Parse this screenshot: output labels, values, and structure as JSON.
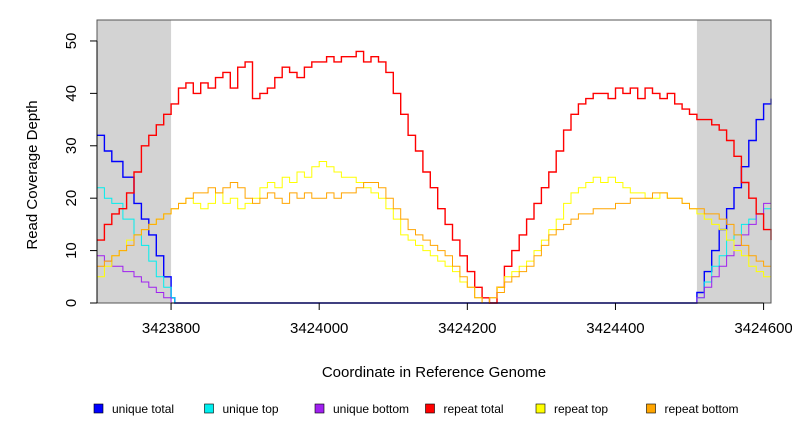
{
  "chart_data": {
    "type": "line",
    "xlabel": "Coordinate in Reference Genome",
    "ylabel": "Read Coverage Depth",
    "xlim": [
      3423700,
      3424610
    ],
    "ylim": [
      0,
      54
    ],
    "x_ticks": [
      3423800,
      3424000,
      3424200,
      3424400,
      3424600
    ],
    "x_tick_labels": [
      "3423800",
      "3424000",
      "3424200",
      "3424400",
      "3424600"
    ],
    "y_ticks": [
      0,
      10,
      20,
      30,
      40,
      50
    ],
    "y_tick_labels": [
      "0",
      "10",
      "20",
      "30",
      "40",
      "50"
    ],
    "shaded_regions": [
      [
        3423700,
        3423800
      ],
      [
        3424510,
        3424610
      ]
    ],
    "shade_color": "#d3d3d3",
    "legend_position": "bottom",
    "series": [
      {
        "name": "unique total",
        "color": "#0000ff",
        "x": [
          3423700,
          3423710,
          3423720,
          3423735,
          3423750,
          3423760,
          3423770,
          3423780,
          3423790,
          3423800,
          3423805,
          3424505,
          3424510,
          3424520,
          3424530,
          3424540,
          3424550,
          3424560,
          3424570,
          3424580,
          3424590,
          3424600,
          3424610
        ],
        "y": [
          32,
          29,
          27,
          24,
          19,
          16,
          13,
          9,
          5,
          1,
          0,
          0,
          2,
          6,
          10,
          14,
          18,
          22,
          26,
          31,
          35,
          38,
          39
        ]
      },
      {
        "name": "unique top",
        "color": "#00eeee",
        "x": [
          3423700,
          3423710,
          3423720,
          3423735,
          3423750,
          3423760,
          3423770,
          3423780,
          3423790,
          3423800,
          3423805,
          3424505,
          3424510,
          3424520,
          3424530,
          3424540,
          3424550,
          3424560,
          3424570,
          3424580,
          3424590,
          3424600,
          3424610
        ],
        "y": [
          22,
          20,
          19,
          16,
          13,
          11,
          8,
          5,
          3,
          1,
          0,
          0,
          1,
          4,
          7,
          9,
          12,
          13,
          15,
          16,
          17,
          18,
          19
        ]
      },
      {
        "name": "unique bottom",
        "color": "#a020f0",
        "x": [
          3423700,
          3423710,
          3423720,
          3423735,
          3423750,
          3423760,
          3423770,
          3423780,
          3423790,
          3423800,
          3423805,
          3424505,
          3424510,
          3424520,
          3424530,
          3424540,
          3424550,
          3424560,
          3424570,
          3424580,
          3424590,
          3424600,
          3424610
        ],
        "y": [
          9,
          8,
          7,
          6,
          5,
          4,
          3,
          2,
          1,
          0,
          0,
          0,
          1,
          3,
          5,
          7,
          9,
          11,
          13,
          15,
          17,
          19,
          20
        ]
      },
      {
        "name": "repeat total",
        "color": "#ff0000",
        "x": [
          3423700,
          3423710,
          3423720,
          3423730,
          3423740,
          3423750,
          3423760,
          3423770,
          3423780,
          3423790,
          3423800,
          3423810,
          3423820,
          3423830,
          3423840,
          3423850,
          3423860,
          3423870,
          3423880,
          3423890,
          3423900,
          3423910,
          3423920,
          3423930,
          3423940,
          3423950,
          3423960,
          3423970,
          3423980,
          3423990,
          3424000,
          3424010,
          3424020,
          3424030,
          3424040,
          3424050,
          3424060,
          3424070,
          3424080,
          3424090,
          3424100,
          3424110,
          3424120,
          3424130,
          3424140,
          3424150,
          3424160,
          3424170,
          3424180,
          3424190,
          3424200,
          3424210,
          3424220,
          3424230,
          3424240,
          3424250,
          3424260,
          3424270,
          3424280,
          3424290,
          3424300,
          3424310,
          3424320,
          3424330,
          3424340,
          3424350,
          3424360,
          3424370,
          3424380,
          3424390,
          3424400,
          3424410,
          3424420,
          3424430,
          3424440,
          3424450,
          3424460,
          3424470,
          3424480,
          3424490,
          3424500,
          3424510,
          3424520,
          3424530,
          3424540,
          3424550,
          3424560,
          3424570,
          3424580,
          3424590,
          3424600,
          3424610
        ],
        "y": [
          12,
          15,
          17,
          18,
          21,
          25,
          30,
          32,
          34,
          36,
          38,
          41,
          42,
          40,
          42,
          41,
          43,
          44,
          41,
          45,
          46,
          39,
          40,
          41,
          43,
          45,
          44,
          43,
          45,
          46,
          46,
          47,
          46,
          47,
          47,
          48,
          46,
          47,
          46,
          44,
          40,
          36,
          32,
          29,
          25,
          22,
          18,
          15,
          12,
          9,
          6,
          3,
          1,
          0,
          3,
          7,
          10,
          13,
          16,
          19,
          22,
          25,
          29,
          33,
          36,
          38,
          39,
          40,
          40,
          39,
          41,
          40,
          41,
          39,
          41,
          40,
          39,
          40,
          38,
          37,
          36,
          35,
          35,
          34,
          33,
          31,
          28,
          23,
          20,
          17,
          14,
          12
        ]
      },
      {
        "name": "repeat top",
        "color": "#ffff00",
        "x": [
          3423700,
          3423710,
          3423720,
          3423730,
          3423740,
          3423750,
          3423760,
          3423770,
          3423780,
          3423790,
          3423800,
          3423810,
          3423820,
          3423830,
          3423840,
          3423850,
          3423860,
          3423870,
          3423880,
          3423890,
          3423900,
          3423910,
          3423920,
          3423930,
          3423940,
          3423950,
          3423960,
          3423970,
          3423980,
          3423990,
          3424000,
          3424010,
          3424020,
          3424030,
          3424040,
          3424050,
          3424060,
          3424070,
          3424080,
          3424090,
          3424100,
          3424110,
          3424120,
          3424130,
          3424140,
          3424150,
          3424160,
          3424170,
          3424180,
          3424190,
          3424200,
          3424210,
          3424220,
          3424230,
          3424240,
          3424250,
          3424260,
          3424270,
          3424280,
          3424290,
          3424300,
          3424310,
          3424320,
          3424330,
          3424340,
          3424350,
          3424360,
          3424370,
          3424380,
          3424390,
          3424400,
          3424410,
          3424420,
          3424430,
          3424440,
          3424450,
          3424460,
          3424470,
          3424480,
          3424490,
          3424500,
          3424510,
          3424520,
          3424530,
          3424540,
          3424550,
          3424560,
          3424570,
          3424580,
          3424590,
          3424600,
          3424610
        ],
        "y": [
          5,
          7,
          9,
          10,
          12,
          13,
          14,
          15,
          16,
          17,
          18,
          19,
          20,
          19,
          18,
          19,
          21,
          19,
          20,
          18,
          19,
          20,
          22,
          23,
          22,
          24,
          23,
          25,
          24,
          26,
          27,
          26,
          25,
          24,
          24,
          23,
          22,
          21,
          20,
          18,
          16,
          13,
          12,
          11,
          10,
          9,
          8,
          7,
          6,
          4,
          3,
          1,
          0,
          1,
          3,
          5,
          6,
          7,
          8,
          10,
          12,
          14,
          16,
          19,
          21,
          22,
          23,
          24,
          23,
          24,
          23,
          22,
          21,
          21,
          20,
          20,
          21,
          20,
          20,
          19,
          18,
          17,
          16,
          15,
          14,
          12,
          10,
          9,
          7,
          6,
          5,
          5
        ]
      },
      {
        "name": "repeat bottom",
        "color": "#ffa500",
        "x": [
          3423700,
          3423710,
          3423720,
          3423730,
          3423740,
          3423750,
          3423760,
          3423770,
          3423780,
          3423790,
          3423800,
          3423810,
          3423820,
          3423830,
          3423840,
          3423850,
          3423860,
          3423870,
          3423880,
          3423890,
          3423900,
          3423910,
          3423920,
          3423930,
          3423940,
          3423950,
          3423960,
          3423970,
          3423980,
          3423990,
          3424000,
          3424010,
          3424020,
          3424030,
          3424040,
          3424050,
          3424060,
          3424070,
          3424080,
          3424090,
          3424100,
          3424110,
          3424120,
          3424130,
          3424140,
          3424150,
          3424160,
          3424170,
          3424180,
          3424190,
          3424200,
          3424210,
          3424220,
          3424230,
          3424240,
          3424250,
          3424260,
          3424270,
          3424280,
          3424290,
          3424300,
          3424310,
          3424320,
          3424330,
          3424340,
          3424350,
          3424360,
          3424370,
          3424380,
          3424390,
          3424400,
          3424410,
          3424420,
          3424430,
          3424440,
          3424450,
          3424460,
          3424470,
          3424480,
          3424490,
          3424500,
          3424510,
          3424520,
          3424530,
          3424540,
          3424550,
          3424560,
          3424570,
          3424580,
          3424590,
          3424600,
          3424610
        ],
        "y": [
          7,
          8,
          9,
          10,
          11,
          13,
          14,
          15,
          16,
          17,
          18,
          19,
          20,
          21,
          21,
          22,
          21,
          22,
          23,
          22,
          20,
          19,
          20,
          21,
          20,
          19,
          21,
          20,
          21,
          20,
          20,
          21,
          20,
          21,
          21,
          22,
          23,
          23,
          22,
          20,
          18,
          16,
          14,
          13,
          12,
          11,
          10,
          9,
          7,
          5,
          3,
          1,
          0,
          1,
          2,
          4,
          5,
          6,
          7,
          9,
          11,
          13,
          14,
          15,
          16,
          17,
          17,
          18,
          18,
          18,
          19,
          19,
          20,
          20,
          20,
          21,
          21,
          20,
          20,
          19,
          18,
          18,
          17,
          17,
          16,
          15,
          13,
          11,
          9,
          8,
          7,
          6
        ]
      }
    ]
  }
}
